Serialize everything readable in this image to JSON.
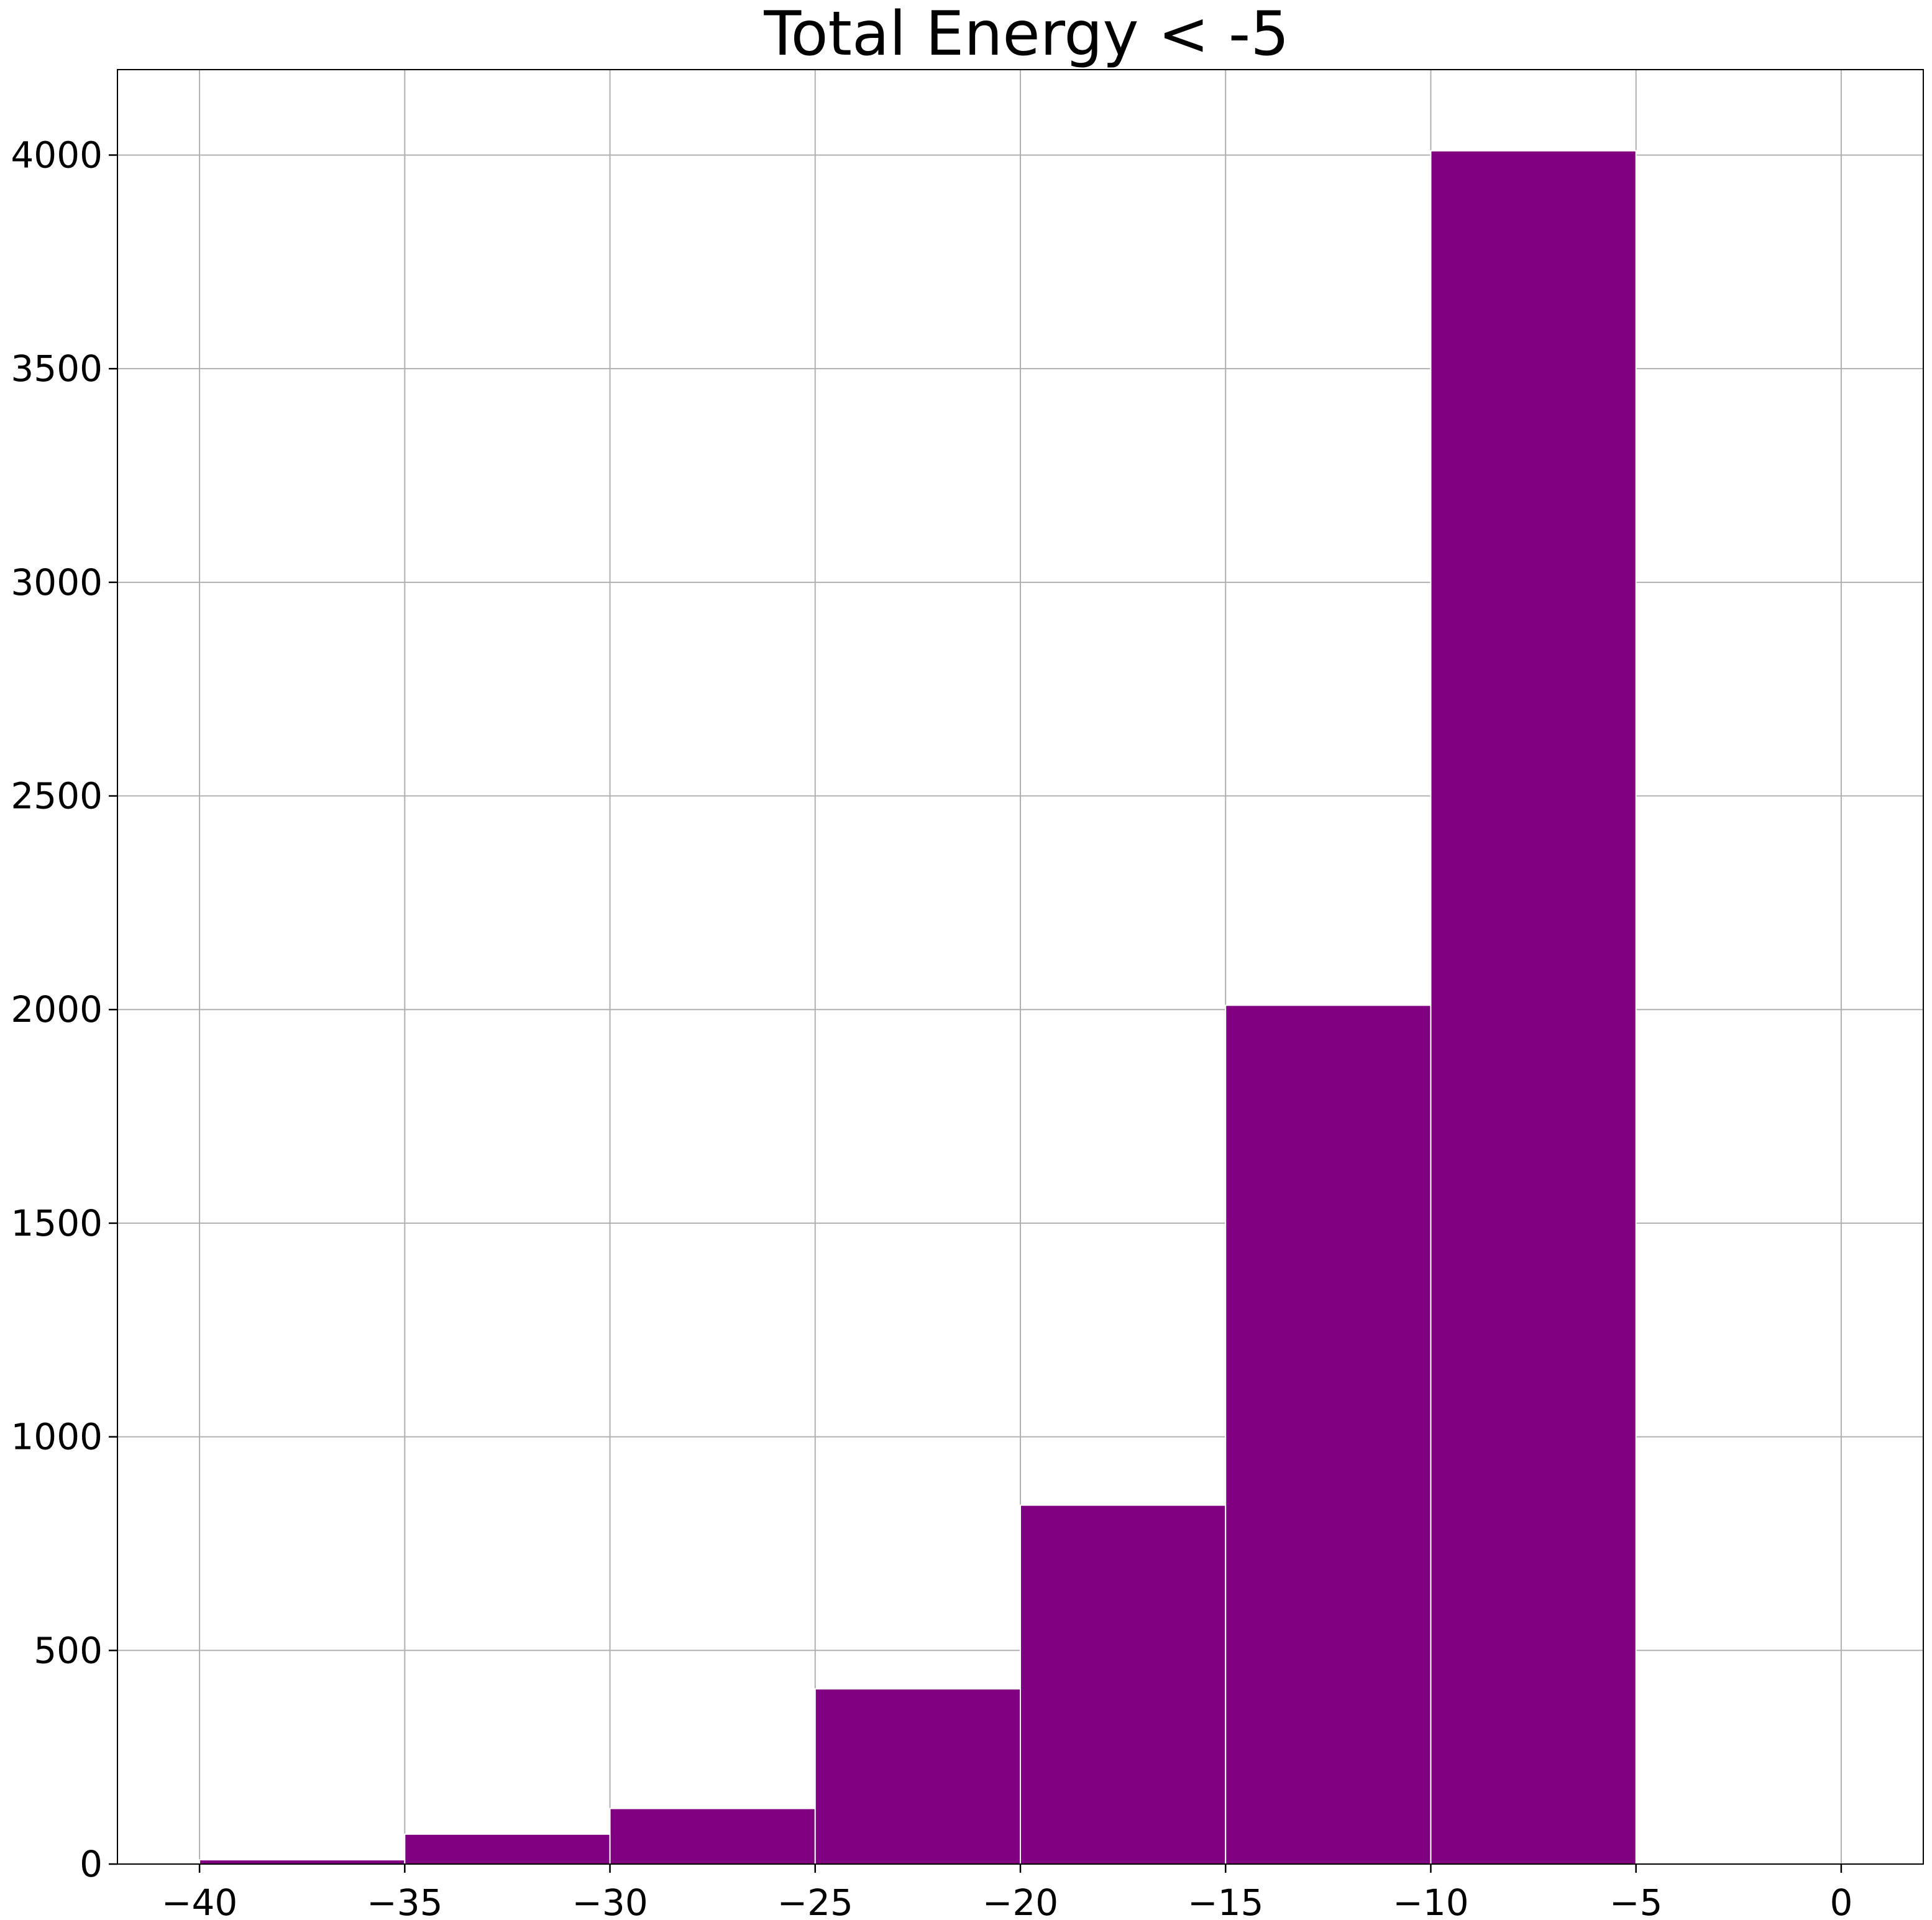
{
  "chart_data": {
    "type": "bar",
    "title": "Total Energy < -5",
    "xlabel": "",
    "ylabel": "",
    "bin_edges": [
      -40,
      -35,
      -30,
      -25,
      -20,
      -15,
      -10,
      -5
    ],
    "values": [
      10,
      70,
      130,
      410,
      840,
      2010,
      4010
    ],
    "xlim": [
      -42,
      2
    ],
    "ylim": [
      0,
      4200
    ],
    "x_ticks": [
      -40,
      -35,
      -30,
      -25,
      -20,
      -15,
      -10,
      -5,
      0
    ],
    "x_tick_labels": [
      "−40",
      "−35",
      "−30",
      "−25",
      "−20",
      "−15",
      "−10",
      "−5",
      "0"
    ],
    "y_ticks": [
      0,
      500,
      1000,
      1500,
      2000,
      2500,
      3000,
      3500,
      4000
    ],
    "y_tick_labels": [
      "0",
      "500",
      "1000",
      "1500",
      "2000",
      "2500",
      "3000",
      "3500",
      "4000"
    ],
    "grid": true,
    "bar_color": "#800080",
    "bar_edge_color": "#ffffff",
    "grid_color": "#b0b0b0"
  }
}
